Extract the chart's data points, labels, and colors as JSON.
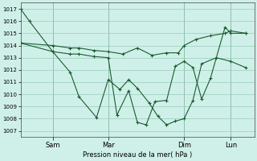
{
  "xlabel": "Pression niveau de la mer( hPa )",
  "ylim": [
    1006.5,
    1017.5
  ],
  "yticks": [
    1007,
    1008,
    1009,
    1010,
    1011,
    1012,
    1013,
    1014,
    1015,
    1016,
    1017
  ],
  "bg_color": "#cff0e8",
  "grid_color": "#99ccbb",
  "line_color": "#1a5c30",
  "xlim": [
    0,
    8.0
  ],
  "day_positions": [
    1.1,
    3.0,
    5.6,
    7.2
  ],
  "day_labels": [
    "Sam",
    "Mar",
    "Dim",
    "Lun"
  ],
  "vline_positions": [
    1.1,
    3.0,
    5.6,
    7.2
  ],
  "s1_x": [
    0.0,
    0.3,
    1.1,
    1.7,
    2.0,
    2.6,
    3.0,
    3.4,
    3.7,
    4.0,
    4.4,
    4.7,
    5.0,
    5.3,
    5.6,
    5.9,
    6.2,
    6.7,
    7.2,
    7.7
  ],
  "s1_y": [
    1017.0,
    1016.0,
    1013.5,
    1011.8,
    1009.8,
    1008.1,
    1011.2,
    1010.4,
    1011.2,
    1010.5,
    1009.3,
    1008.2,
    1007.5,
    1007.8,
    1008.0,
    1009.5,
    1012.5,
    1013.0,
    1012.7,
    1012.2
  ],
  "s2_x": [
    0.0,
    1.1,
    1.7,
    2.0,
    2.5,
    3.0,
    3.5,
    4.0,
    4.5,
    5.0,
    5.4,
    5.6,
    6.0,
    6.5,
    7.0,
    7.2,
    7.7
  ],
  "s2_y": [
    1014.2,
    1014.0,
    1013.8,
    1013.8,
    1013.6,
    1013.5,
    1013.3,
    1013.8,
    1013.2,
    1013.4,
    1013.4,
    1014.0,
    1014.5,
    1014.8,
    1015.0,
    1015.2,
    1015.0
  ],
  "s3_x": [
    0.0,
    1.1,
    1.7,
    2.0,
    2.5,
    3.0,
    3.3,
    3.7,
    4.0,
    4.3,
    4.6,
    5.0,
    5.3,
    5.6,
    5.9,
    6.2,
    6.5,
    7.0,
    7.2,
    7.7
  ],
  "s3_y": [
    1014.2,
    1013.5,
    1013.3,
    1013.3,
    1013.1,
    1013.0,
    1008.3,
    1010.3,
    1007.7,
    1007.5,
    1009.4,
    1009.5,
    1012.3,
    1012.7,
    1012.2,
    1009.6,
    1011.3,
    1015.5,
    1015.0,
    1015.0
  ]
}
